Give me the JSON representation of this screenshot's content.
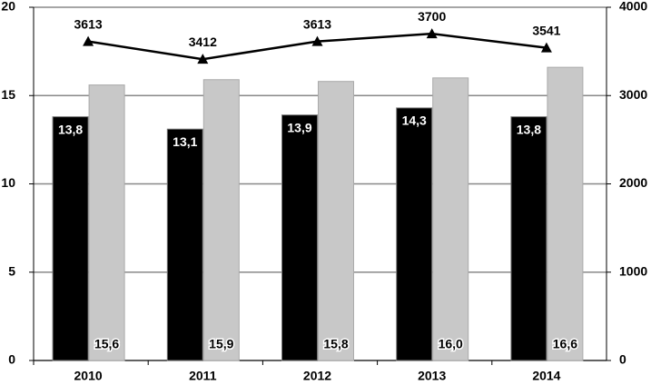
{
  "chart_data": {
    "type": "bar_line",
    "categories": [
      "2010",
      "2011",
      "2012",
      "2013",
      "2014"
    ],
    "series": [
      {
        "color": "#000000",
        "values": [
          13.8,
          13.1,
          13.9,
          14.3,
          13.8
        ],
        "value_labels": [
          "13,8",
          "13,1",
          "13,9",
          "14,3",
          "13,8"
        ]
      },
      {
        "color": "#c8c8c8",
        "values": [
          15.6,
          15.9,
          15.8,
          16.0,
          16.6
        ],
        "value_labels": [
          "15,6",
          "15,9",
          "15,8",
          "16,0",
          "16,6"
        ]
      },
      {
        "color": "#000000",
        "axis": "y2",
        "line": true,
        "values": [
          3613,
          3412,
          3613,
          3700,
          3541
        ]
      }
    ],
    "ylim": [
      0,
      20
    ],
    "yticks": [
      0,
      5,
      10,
      15,
      20
    ],
    "y2lim": [
      0,
      4000
    ],
    "y2ticks": [
      0,
      1000,
      2000,
      3000,
      4000
    ],
    "grid": true
  }
}
